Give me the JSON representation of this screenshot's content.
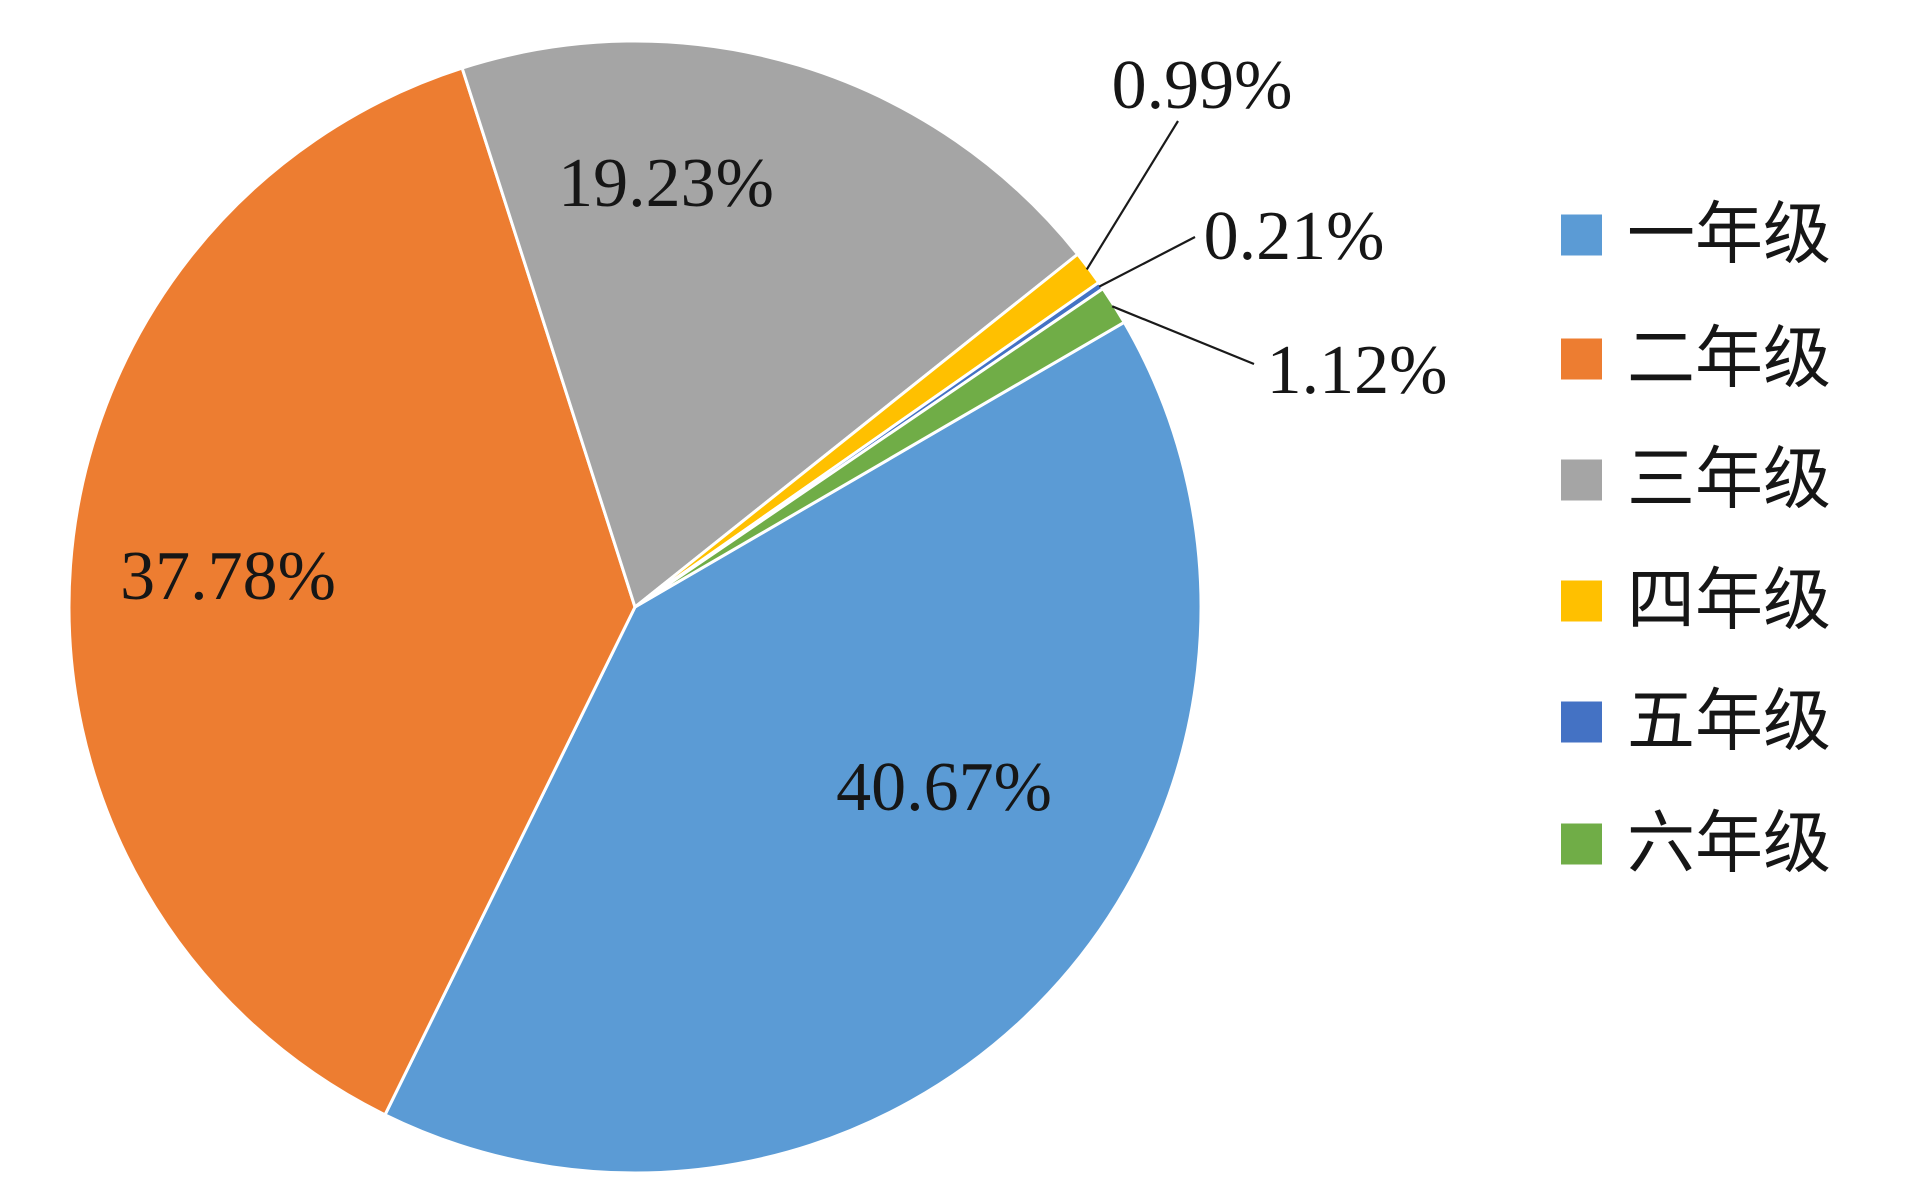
{
  "chart_data": {
    "type": "pie",
    "categories": [
      "一年级",
      "二年级",
      "三年级",
      "四年级",
      "五年级",
      "六年级"
    ],
    "values": [
      40.67,
      37.78,
      19.23,
      0.99,
      0.21,
      1.12
    ],
    "data_labels": [
      "40.67%",
      "37.78%",
      "19.23%",
      "0.99%",
      "0.21%",
      "1.12%"
    ],
    "colors": [
      "#5B9BD5",
      "#ED7D31",
      "#A5A5A5",
      "#FFC000",
      "#4472C4",
      "#70AD47"
    ],
    "legend_position": "right",
    "title": ""
  }
}
